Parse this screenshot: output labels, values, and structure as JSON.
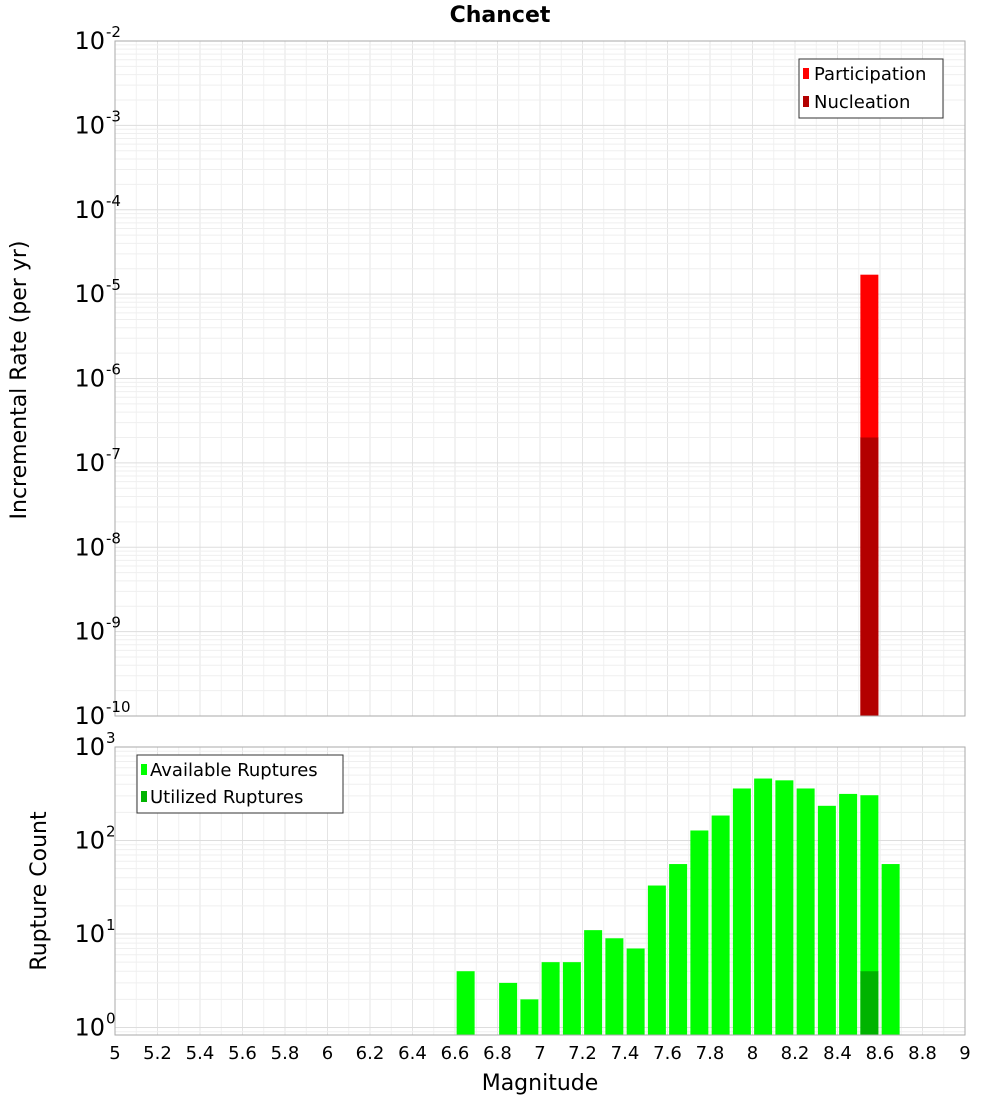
{
  "title": "Chancet",
  "chart_data": [
    {
      "type": "bar",
      "scale": "log",
      "ylabel": "Incremental Rate (per yr)",
      "xlim": [
        5,
        9
      ],
      "ylim_exponents": [
        -10,
        -2
      ],
      "ytick_labels": [
        {
          "exp": "-2"
        },
        {
          "exp": "-3"
        },
        {
          "exp": "-4"
        },
        {
          "exp": "-5"
        },
        {
          "exp": "-6"
        },
        {
          "exp": "-7"
        },
        {
          "exp": "-8"
        },
        {
          "exp": "-9"
        },
        {
          "exp": "-10"
        }
      ],
      "legend": {
        "position": "top-right",
        "entries": [
          "Participation",
          "Nucleation"
        ]
      },
      "series": [
        {
          "name": "Participation",
          "color": "#ff0000",
          "x": [
            8.55
          ],
          "values": [
            1.7e-05
          ]
        },
        {
          "name": "Nucleation",
          "color": "#b30000",
          "x": [
            8.55
          ],
          "values": [
            2e-07
          ]
        }
      ],
      "grid": true
    },
    {
      "type": "bar",
      "scale": "log",
      "ylabel": "Rupture Count",
      "xlabel": "Magnitude",
      "xlim": [
        5,
        9
      ],
      "ylim_exponents": [
        0,
        3
      ],
      "ytick_labels": [
        {
          "exp": "3"
        },
        {
          "exp": "2"
        },
        {
          "exp": "1"
        },
        {
          "exp": "0"
        }
      ],
      "xticks": [
        "5",
        "5.2",
        "5.4",
        "5.6",
        "5.8",
        "6",
        "6.2",
        "6.4",
        "6.6",
        "6.8",
        "7",
        "7.2",
        "7.4",
        "7.6",
        "7.8",
        "8",
        "8.2",
        "8.4",
        "8.6",
        "8.8",
        "9"
      ],
      "legend": {
        "position": "top-left",
        "entries": [
          "Available Ruptures",
          "Utilized Ruptures"
        ]
      },
      "series": [
        {
          "name": "Available Ruptures",
          "color": "#00ff00",
          "x": [
            6.65,
            6.85,
            6.95,
            7.05,
            7.15,
            7.25,
            7.35,
            7.45,
            7.55,
            7.65,
            7.75,
            7.85,
            7.95,
            8.05,
            8.15,
            8.25,
            8.35,
            8.45,
            8.55,
            8.65
          ],
          "values": [
            4,
            3,
            2,
            5,
            5,
            11,
            9,
            7,
            33,
            56,
            128,
            185,
            360,
            460,
            440,
            360,
            235,
            315,
            305,
            56
          ]
        },
        {
          "name": "Utilized Ruptures",
          "color": "#00b300",
          "x": [
            8.55
          ],
          "values": [
            4
          ]
        }
      ],
      "grid": true
    }
  ]
}
